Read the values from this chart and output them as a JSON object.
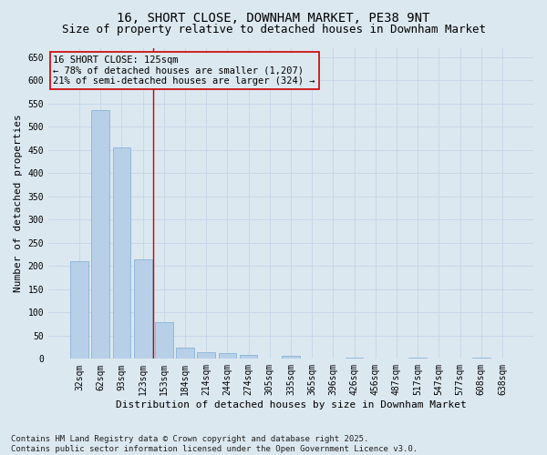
{
  "title": "16, SHORT CLOSE, DOWNHAM MARKET, PE38 9NT",
  "subtitle": "Size of property relative to detached houses in Downham Market",
  "xlabel": "Distribution of detached houses by size in Downham Market",
  "ylabel": "Number of detached properties",
  "bar_labels": [
    "32sqm",
    "62sqm",
    "93sqm",
    "123sqm",
    "153sqm",
    "184sqm",
    "214sqm",
    "244sqm",
    "274sqm",
    "305sqm",
    "335sqm",
    "365sqm",
    "396sqm",
    "426sqm",
    "456sqm",
    "487sqm",
    "517sqm",
    "547sqm",
    "577sqm",
    "608sqm",
    "638sqm"
  ],
  "bar_values": [
    210,
    535,
    455,
    215,
    80,
    25,
    15,
    12,
    8,
    0,
    6,
    0,
    0,
    3,
    0,
    0,
    2,
    0,
    0,
    3,
    0
  ],
  "bar_color": "#b8cfe8",
  "bar_edge_color": "#7aadd4",
  "grid_color": "#c8d8e8",
  "bg_color": "#dce8f0",
  "vline_x": 3.48,
  "vline_color": "#cc0000",
  "annotation_text": "16 SHORT CLOSE: 125sqm\n← 78% of detached houses are smaller (1,207)\n21% of semi-detached houses are larger (324) →",
  "annotation_box_color": "#cc0000",
  "ylim": [
    0,
    670
  ],
  "yticks": [
    0,
    50,
    100,
    150,
    200,
    250,
    300,
    350,
    400,
    450,
    500,
    550,
    600,
    650
  ],
  "footer_text": "Contains HM Land Registry data © Crown copyright and database right 2025.\nContains public sector information licensed under the Open Government Licence v3.0.",
  "title_fontsize": 10,
  "subtitle_fontsize": 9,
  "axis_label_fontsize": 8,
  "tick_fontsize": 7,
  "annotation_fontsize": 7.5,
  "footer_fontsize": 6.5
}
